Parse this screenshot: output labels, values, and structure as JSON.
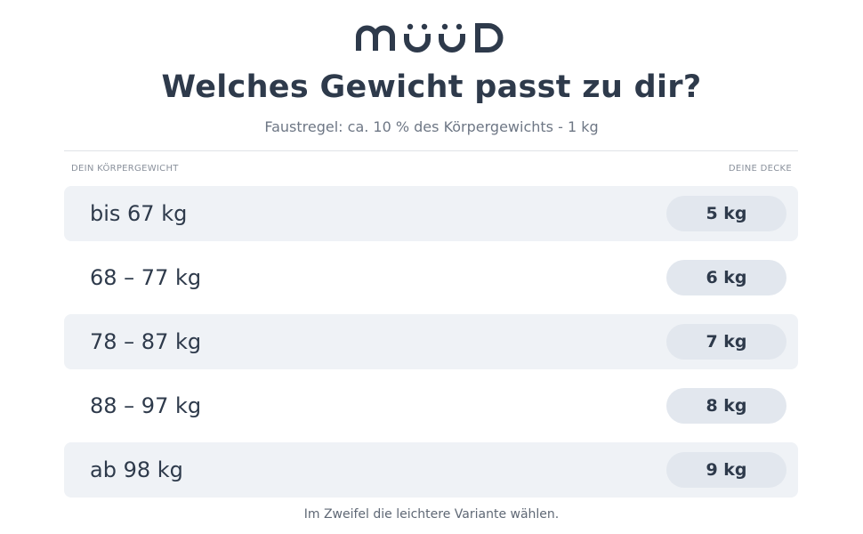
{
  "header": {
    "title": "Welches Gewicht passt zu dir?",
    "subtitle": "Faustregel: ca. 10 % des Körpergewichts - 1 kg"
  },
  "table": {
    "columns": [
      "DEIN KÖRPERGEWICHT",
      "DEINE DECKE"
    ],
    "rows": [
      [
        "bis 67 kg",
        "5 kg"
      ],
      [
        "68 – 77 kg",
        "6 kg"
      ],
      [
        "78 – 87 kg",
        "7 kg"
      ],
      [
        "88 – 97 kg",
        "8 kg"
      ],
      [
        "ab 98 kg",
        "9 kg"
      ]
    ]
  },
  "footer": {
    "note": "Im Zweifel die leichtere Variante wählen."
  }
}
